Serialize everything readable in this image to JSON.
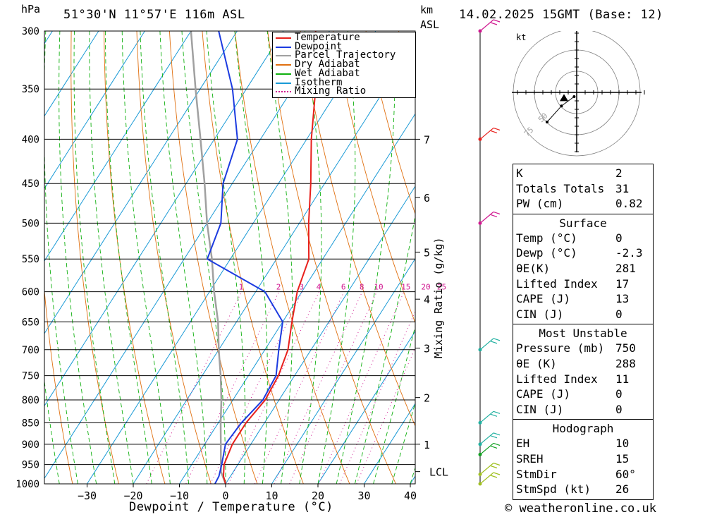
{
  "header": {
    "hpa_label": "hPa",
    "location": "51°30'N  11°57'E  116m  ASL",
    "km_label": "km",
    "asl_label": "ASL",
    "datetime": "14.02.2025  15GMT  (Base: 12)"
  },
  "footer": {
    "credit": "© weatheronline.co.uk"
  },
  "chart_data": {
    "type": "skew-t log-p",
    "xlabel": "Dewpoint / Temperature (°C)",
    "ylabel_right": "Mixing Ratio (g/kg)",
    "y_scale": "log",
    "y_unit_label": "hPa",
    "pressure_levels": [
      300,
      350,
      400,
      450,
      500,
      550,
      600,
      650,
      700,
      750,
      800,
      850,
      900,
      950,
      1000
    ],
    "x_ticks": [
      -30,
      -20,
      -10,
      0,
      10,
      20,
      30,
      40
    ],
    "xlim": [
      -40,
      40
    ],
    "ylim": [
      1000,
      300
    ],
    "km_ticks": [
      {
        "label": "7",
        "p": 400
      },
      {
        "label": "6",
        "p": 467
      },
      {
        "label": "5",
        "p": 540
      },
      {
        "label": "4",
        "p": 612
      },
      {
        "label": "3",
        "p": 697
      },
      {
        "label": "2",
        "p": 795
      },
      {
        "label": "1",
        "p": 900
      },
      {
        "label": "LCL",
        "p": 968
      }
    ],
    "mixing_ratio_labels": [
      "1",
      "2",
      "3",
      "4",
      "6",
      "8",
      "10",
      "15",
      "20",
      "25"
    ],
    "legend": [
      {
        "name": "Temperature",
        "color": "#e8201c",
        "style": "solid"
      },
      {
        "name": "Dewpoint",
        "color": "#1c3be0",
        "style": "solid"
      },
      {
        "name": "Parcel Trajectory",
        "color": "#a0a0a0",
        "style": "solid"
      },
      {
        "name": "Dry Adiabat",
        "color": "#e07010",
        "style": "solid"
      },
      {
        "name": "Wet Adiabat",
        "color": "#10b010",
        "style": "solid"
      },
      {
        "name": "Isotherm",
        "color": "#1a9ad6",
        "style": "solid"
      },
      {
        "name": "Mixing Ratio",
        "color": "#d01890",
        "style": "dotted"
      }
    ],
    "series": [
      {
        "name": "Temperature",
        "points": [
          {
            "p": 1000,
            "t": 0
          },
          {
            "p": 980,
            "t": -1.5
          },
          {
            "p": 950,
            "t": -3
          },
          {
            "p": 900,
            "t": -4
          },
          {
            "p": 850,
            "t": -4
          },
          {
            "p": 800,
            "t": -3
          },
          {
            "p": 750,
            "t": -3.5
          },
          {
            "p": 700,
            "t": -5
          },
          {
            "p": 650,
            "t": -8
          },
          {
            "p": 600,
            "t": -11
          },
          {
            "p": 550,
            "t": -13
          },
          {
            "p": 500,
            "t": -18
          },
          {
            "p": 450,
            "t": -23
          },
          {
            "p": 400,
            "t": -29
          },
          {
            "p": 350,
            "t": -35
          },
          {
            "p": 300,
            "t": -43
          }
        ]
      },
      {
        "name": "Dewpoint",
        "points": [
          {
            "p": 1000,
            "t": -2.3
          },
          {
            "p": 980,
            "t": -2.5
          },
          {
            "p": 950,
            "t": -3.5
          },
          {
            "p": 900,
            "t": -5.5
          },
          {
            "p": 850,
            "t": -5
          },
          {
            "p": 800,
            "t": -3.5
          },
          {
            "p": 750,
            "t": -4
          },
          {
            "p": 700,
            "t": -7
          },
          {
            "p": 650,
            "t": -10
          },
          {
            "p": 600,
            "t": -18
          },
          {
            "p": 550,
            "t": -35
          },
          {
            "p": 500,
            "t": -37
          },
          {
            "p": 450,
            "t": -42
          },
          {
            "p": 400,
            "t": -45
          },
          {
            "p": 350,
            "t": -53
          },
          {
            "p": 300,
            "t": -64
          }
        ]
      },
      {
        "name": "Parcel Trajectory",
        "points": [
          {
            "p": 1000,
            "t": 0
          },
          {
            "p": 968,
            "t": -2.7
          },
          {
            "p": 900,
            "t": -6.5
          },
          {
            "p": 850,
            "t": -9.5
          },
          {
            "p": 800,
            "t": -12.5
          },
          {
            "p": 750,
            "t": -16
          },
          {
            "p": 700,
            "t": -20
          },
          {
            "p": 650,
            "t": -24
          },
          {
            "p": 600,
            "t": -29
          },
          {
            "p": 550,
            "t": -34
          },
          {
            "p": 500,
            "t": -40
          },
          {
            "p": 450,
            "t": -46
          },
          {
            "p": 400,
            "t": -53
          },
          {
            "p": 350,
            "t": -61
          },
          {
            "p": 300,
            "t": -70
          }
        ]
      }
    ],
    "wind_barbs": [
      {
        "p": 300,
        "color": "#d01890"
      },
      {
        "p": 400,
        "color": "#e8201c"
      },
      {
        "p": 500,
        "color": "#d01890"
      },
      {
        "p": 700,
        "color": "#20b0a0"
      },
      {
        "p": 850,
        "color": "#20b0a0"
      },
      {
        "p": 900,
        "color": "#20b0a0"
      },
      {
        "p": 925,
        "color": "#10a020"
      },
      {
        "p": 975,
        "color": "#a0c020"
      },
      {
        "p": 1000,
        "color": "#a0c020"
      }
    ],
    "hodograph": {
      "unit_label": "kt",
      "ring_labels": [
        "75",
        "50"
      ],
      "trace_kt": [
        [
          -35,
          -35
        ],
        [
          -18,
          -16
        ],
        [
          -3,
          -5
        ]
      ],
      "storm_motion_kt": [
        -15,
        -7
      ]
    }
  },
  "indices": {
    "top": [
      {
        "label": "K",
        "value": "2"
      },
      {
        "label": "Totals Totals",
        "value": "31"
      },
      {
        "label": "PW (cm)",
        "value": "0.82"
      }
    ],
    "surface": {
      "title": "Surface",
      "rows": [
        {
          "label": "Temp (°C)",
          "value": "0"
        },
        {
          "label": "Dewp (°C)",
          "value": "-2.3"
        },
        {
          "label": "θE(K)",
          "value": "281"
        },
        {
          "label": "Lifted Index",
          "value": "17"
        },
        {
          "label": "CAPE (J)",
          "value": "13"
        },
        {
          "label": "CIN (J)",
          "value": "0"
        }
      ]
    },
    "most_unstable": {
      "title": "Most Unstable",
      "rows": [
        {
          "label": "Pressure (mb)",
          "value": "750"
        },
        {
          "label": "θE (K)",
          "value": "288"
        },
        {
          "label": "Lifted Index",
          "value": "11"
        },
        {
          "label": "CAPE (J)",
          "value": "0"
        },
        {
          "label": "CIN (J)",
          "value": "0"
        }
      ]
    },
    "hodograph": {
      "title": "Hodograph",
      "rows": [
        {
          "label": "EH",
          "value": "10"
        },
        {
          "label": "SREH",
          "value": "15"
        },
        {
          "label": "StmDir",
          "value": "60°"
        },
        {
          "label": "StmSpd (kt)",
          "value": "26"
        }
      ]
    }
  }
}
